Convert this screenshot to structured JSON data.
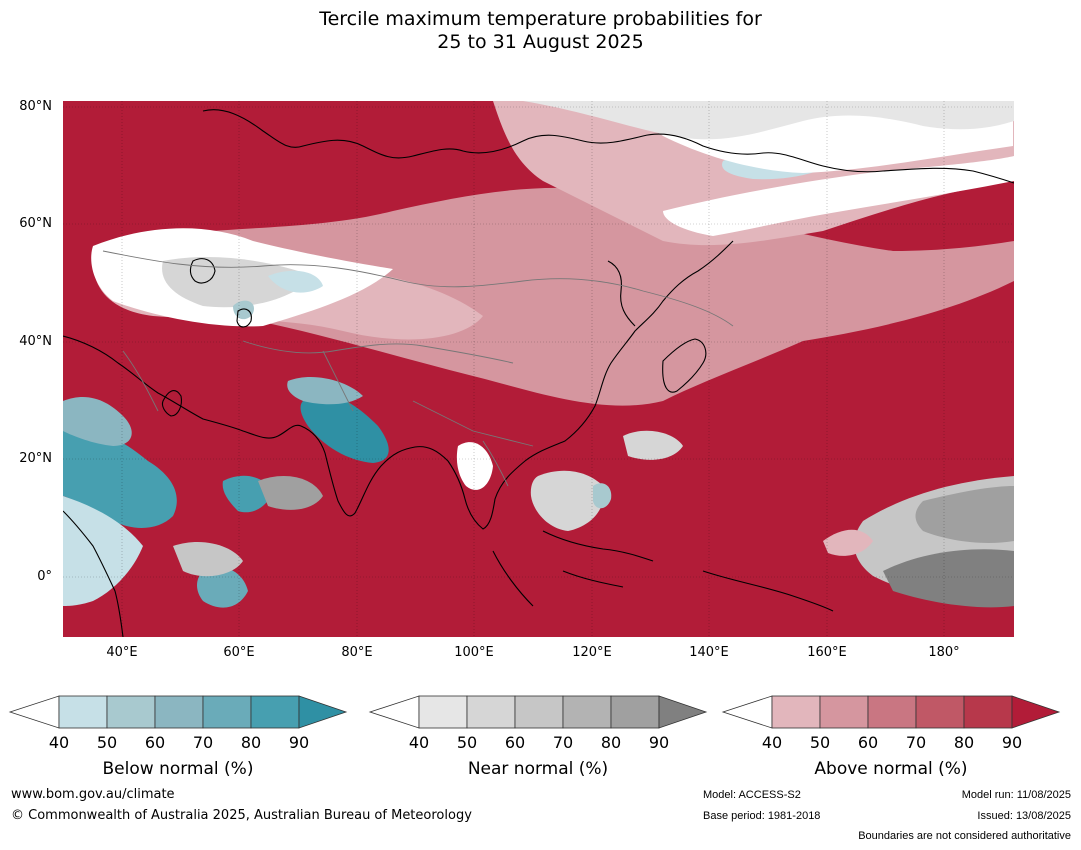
{
  "title": {
    "line1": "Tercile maximum temperature probabilities for",
    "line2": "25 to 31 August 2025"
  },
  "map": {
    "lat_labels": [
      "80°N",
      "60°N",
      "40°N",
      "20°N",
      "0°"
    ],
    "lon_labels": [
      "40°E",
      "60°E",
      "80°E",
      "100°E",
      "120°E",
      "140°E",
      "160°E",
      "180°"
    ],
    "colors": {
      "above_dominant": "#b21c38",
      "below_dominant": "#3a98aa",
      "near_dominant": "#9a9a9a"
    }
  },
  "legends": {
    "below": {
      "label": "Below normal (%)",
      "ticks": [
        "40",
        "50",
        "60",
        "70",
        "80",
        "90"
      ],
      "colors": [
        "#ffffff",
        "#c6e0e7",
        "#a8c9cf",
        "#8bb6c1",
        "#6aabb9",
        "#479fb0",
        "#2f90a4"
      ]
    },
    "near": {
      "label": "Near normal (%)",
      "ticks": [
        "40",
        "50",
        "60",
        "70",
        "80",
        "90"
      ],
      "colors": [
        "#ffffff",
        "#e6e6e6",
        "#d6d6d6",
        "#c6c6c6",
        "#b3b3b3",
        "#a0a0a0",
        "#808080"
      ]
    },
    "above": {
      "label": "Above normal (%)",
      "ticks": [
        "40",
        "50",
        "60",
        "70",
        "80",
        "90"
      ],
      "colors": [
        "#ffffff",
        "#e2b6bc",
        "#d5969f",
        "#c97682",
        "#c05866",
        "#b7384b",
        "#b21c38"
      ]
    }
  },
  "footer": {
    "website": "www.bom.gov.au/climate",
    "copyright": "© Commonwealth of Australia 2025, Australian Bureau of Meteorology",
    "model": "Model: ACCESS-S2",
    "base_period": "Base period: 1981-2018",
    "model_run": "Model run: 11/08/2025",
    "issued": "Issued: 13/08/2025",
    "disclaimer": "Boundaries are not considered authoritative"
  }
}
